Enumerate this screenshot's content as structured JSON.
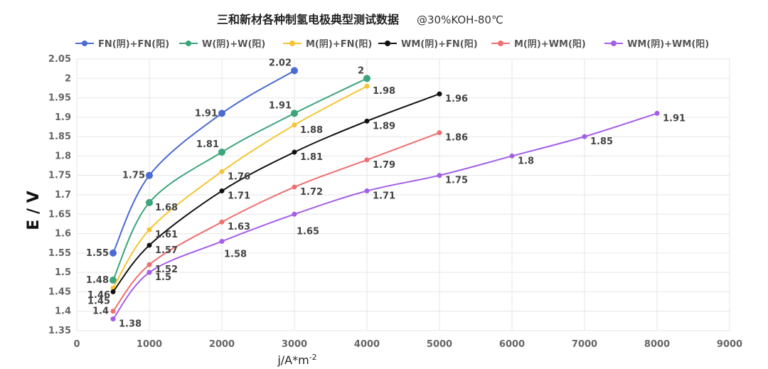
{
  "chart_data": {
    "type": "line",
    "title": "三和新材各种制氢电极典型测试数据",
    "subtitle": "@30%KOH-80℃",
    "xlabel": "j/A*m",
    "xlabel_sup": "-2",
    "ylabel": "E / V",
    "xlim": [
      0,
      9000
    ],
    "ylim": [
      1.35,
      2.05
    ],
    "x_ticks": [
      0,
      1000,
      2000,
      3000,
      4000,
      5000,
      6000,
      7000,
      8000,
      9000
    ],
    "y_ticks": [
      1.35,
      1.4,
      1.45,
      1.5,
      1.55,
      1.6,
      1.65,
      1.7,
      1.75,
      1.8,
      1.85,
      1.9,
      1.95,
      2,
      2.05
    ],
    "grid": true,
    "legend_position": "top",
    "series": [
      {
        "name": "FN(阴)+FN(阳)",
        "color": "#4a6bd1",
        "x": [
          500,
          1000,
          2000,
          3000
        ],
        "y": [
          1.55,
          1.75,
          1.91,
          2.02
        ]
      },
      {
        "name": "W(阴)+W(阳)",
        "color": "#3aa57a",
        "x": [
          500,
          1000,
          2000,
          3000,
          4000
        ],
        "y": [
          1.48,
          1.68,
          1.81,
          1.91,
          2
        ]
      },
      {
        "name": "M(阴)+FN(阳)",
        "color": "#f5c535",
        "x": [
          500,
          1000,
          2000,
          3000,
          4000
        ],
        "y": [
          1.46,
          1.61,
          1.76,
          1.88,
          1.98
        ]
      },
      {
        "name": "WM(阴)+FN(阳)",
        "color": "#111111",
        "x": [
          500,
          1000,
          2000,
          3000,
          4000,
          5000
        ],
        "y": [
          1.45,
          1.57,
          1.71,
          1.81,
          1.89,
          1.96
        ]
      },
      {
        "name": "M(阴)+WM(阳)",
        "color": "#ee6f6f",
        "x": [
          500,
          1000,
          2000,
          3000,
          4000,
          5000
        ],
        "y": [
          1.4,
          1.52,
          1.63,
          1.72,
          1.79,
          1.86
        ]
      },
      {
        "name": "WM(阴)+WM(阳)",
        "color": "#a35ee8",
        "x": [
          500,
          1000,
          2000,
          3000,
          4000,
          5000,
          6000,
          7000,
          8000
        ],
        "y": [
          1.38,
          1.5,
          1.58,
          1.65,
          1.71,
          1.75,
          1.8,
          1.85,
          1.91
        ]
      }
    ]
  }
}
